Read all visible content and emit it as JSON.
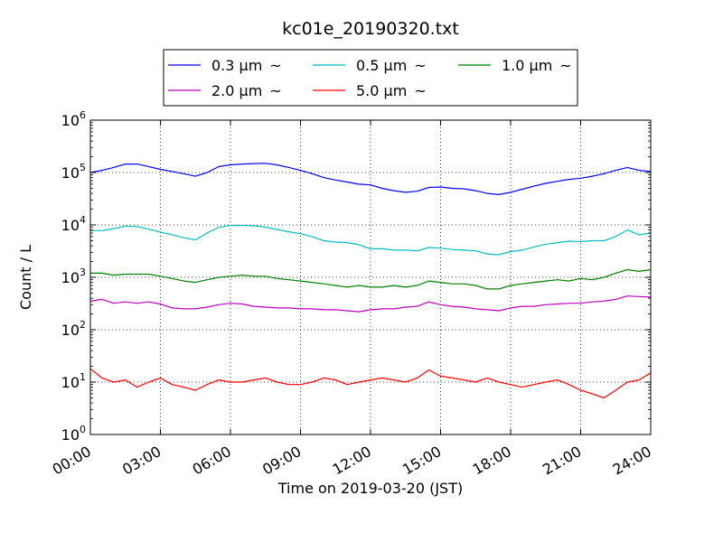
{
  "chart_data": {
    "type": "line",
    "title": "kc01e_20190320.txt",
    "xlabel": "Time on 2019-03-20 (JST)",
    "ylabel": "Count / L",
    "xlim": [
      0,
      24
    ],
    "ylim": [
      1,
      1000000
    ],
    "y_scale": "log",
    "grid": true,
    "legend_position": "top-center",
    "legend_suffix": "~",
    "x_ticks": [
      {
        "value": 0,
        "label": "00:00"
      },
      {
        "value": 3,
        "label": "03:00"
      },
      {
        "value": 6,
        "label": "06:00"
      },
      {
        "value": 9,
        "label": "09:00"
      },
      {
        "value": 12,
        "label": "12:00"
      },
      {
        "value": 15,
        "label": "15:00"
      },
      {
        "value": 18,
        "label": "18:00"
      },
      {
        "value": 21,
        "label": "21:00"
      },
      {
        "value": 24,
        "label": "24:00"
      }
    ],
    "y_ticks": [
      {
        "value": 1,
        "base": "10",
        "exp": "0"
      },
      {
        "value": 10,
        "base": "10",
        "exp": "1"
      },
      {
        "value": 100,
        "base": "10",
        "exp": "2"
      },
      {
        "value": 1000,
        "base": "10",
        "exp": "3"
      },
      {
        "value": 10000,
        "base": "10",
        "exp": "4"
      },
      {
        "value": 100000,
        "base": "10",
        "exp": "5"
      },
      {
        "value": 1000000,
        "base": "10",
        "exp": "6"
      }
    ],
    "x": [
      0,
      0.5,
      1,
      1.5,
      2,
      2.5,
      3,
      3.5,
      4,
      4.5,
      5,
      5.5,
      6,
      6.5,
      7,
      7.5,
      8,
      8.5,
      9,
      9.5,
      10,
      10.5,
      11,
      11.5,
      12,
      12.5,
      13,
      13.5,
      14,
      14.5,
      15,
      15.5,
      16,
      16.5,
      17,
      17.5,
      18,
      18.5,
      19,
      19.5,
      20,
      20.5,
      21,
      21.5,
      22,
      22.5,
      23,
      23.5,
      24
    ],
    "series": [
      {
        "name": "0.3 μm",
        "color": "#0000ff",
        "values": [
          100000,
          110000,
          125000,
          145000,
          145000,
          130000,
          115000,
          105000,
          95000,
          85000,
          100000,
          130000,
          140000,
          145000,
          148000,
          150000,
          140000,
          125000,
          110000,
          95000,
          80000,
          72000,
          66000,
          60000,
          58000,
          50000,
          45000,
          42000,
          44000,
          52000,
          53000,
          50000,
          49000,
          45000,
          40000,
          38000,
          42000,
          48000,
          55000,
          62000,
          68000,
          74000,
          78000,
          85000,
          95000,
          110000,
          125000,
          110000,
          105000
        ]
      },
      {
        "name": "0.5 μm",
        "color": "#00bfbf",
        "values": [
          7800,
          7800,
          8500,
          9500,
          9300,
          8300,
          7300,
          6500,
          5700,
          5200,
          7000,
          9000,
          9800,
          9800,
          9600,
          9100,
          8200,
          7400,
          6800,
          6000,
          5000,
          4700,
          4600,
          4200,
          3500,
          3500,
          3300,
          3300,
          3200,
          3700,
          3600,
          3400,
          3300,
          3200,
          2800,
          2700,
          3100,
          3300,
          3800,
          4300,
          4600,
          4900,
          4800,
          5000,
          5000,
          6000,
          8000,
          6500,
          7000
        ]
      },
      {
        "name": "1.0 μm",
        "color": "#008000",
        "values": [
          1200,
          1200,
          1100,
          1150,
          1150,
          1150,
          1050,
          950,
          850,
          800,
          900,
          1000,
          1050,
          1100,
          1050,
          1050,
          950,
          900,
          850,
          800,
          750,
          700,
          650,
          700,
          650,
          650,
          700,
          650,
          700,
          850,
          800,
          750,
          750,
          700,
          600,
          600,
          700,
          750,
          800,
          850,
          900,
          850,
          950,
          900,
          1000,
          1200,
          1400,
          1300,
          1400
        ]
      },
      {
        "name": "2.0 μm",
        "color": "#bf00bf",
        "values": [
          350,
          380,
          320,
          340,
          320,
          340,
          310,
          260,
          250,
          250,
          270,
          300,
          320,
          310,
          280,
          270,
          260,
          260,
          250,
          250,
          240,
          240,
          230,
          220,
          240,
          250,
          250,
          270,
          280,
          340,
          300,
          280,
          270,
          250,
          240,
          230,
          260,
          280,
          280,
          300,
          310,
          320,
          320,
          340,
          350,
          380,
          440,
          430,
          420
        ]
      },
      {
        "name": "5.0 μm",
        "color": "#ff0000",
        "values": [
          18,
          12,
          10,
          11,
          8,
          10,
          12,
          9,
          8,
          7,
          9,
          11,
          10,
          10,
          11,
          12,
          10,
          9,
          9,
          10,
          12,
          11,
          9,
          10,
          11,
          12,
          11,
          10,
          12,
          17,
          13,
          12,
          11,
          10,
          12,
          10,
          9,
          8,
          9,
          10,
          11,
          9,
          7,
          6,
          5,
          7,
          10,
          11,
          15
        ]
      }
    ]
  }
}
